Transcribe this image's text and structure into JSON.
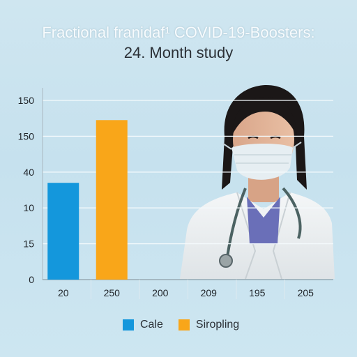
{
  "title_line1": "Fractional franidaf¹ COVID-19-Boosters:",
  "title_line2": "24. Month study",
  "photo_description_icon": "masked-doctor-photo",
  "chart_data": {
    "type": "bar",
    "title": "Fractional franidaf¹ COVID-19-Boosters: 24. Month study",
    "categories": [
      "20",
      "250",
      "200",
      "209",
      "195",
      "205"
    ],
    "y_tick_labels": [
      "0",
      "15",
      "10",
      "40",
      "150",
      "150"
    ],
    "y_tick_values": [
      0,
      1,
      2,
      3,
      4,
      5
    ],
    "ylim": [
      0,
      5
    ],
    "grid": true,
    "legend_position": "bottom",
    "series": [
      {
        "name": "Cale",
        "color": "#1497dc",
        "values": [
          2.7,
          null,
          null,
          null,
          null,
          null
        ]
      },
      {
        "name": "Siropling",
        "color": "#f9a619",
        "values": [
          null,
          4.45,
          null,
          null,
          null,
          null
        ]
      }
    ]
  }
}
